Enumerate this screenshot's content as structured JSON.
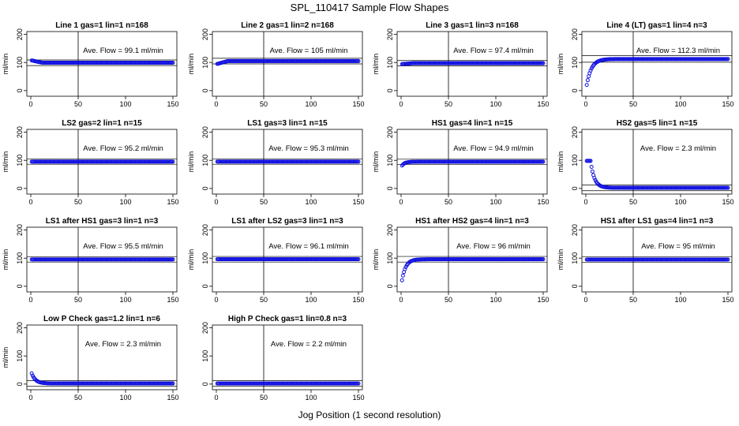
{
  "figure": {
    "title": "SPL_110417  Sample Flow Shapes",
    "xlabel": "Jog Position (1 second resolution)"
  },
  "colors": {
    "points": "#1010e0",
    "axes": "#000000"
  },
  "chart_data": [
    {
      "type": "scatter",
      "title": "Line 1 gas=1 lin=1 n=168",
      "ylabel": "ml/min",
      "annotation": "Ave. Flow =  99.1  ml/min",
      "xlim": [
        0,
        150
      ],
      "ylim": [
        -20,
        210
      ],
      "xticks": [
        0,
        50,
        100,
        150
      ],
      "yticks": [
        0,
        100,
        200
      ],
      "vline": 50,
      "hlines": [
        89,
        109
      ],
      "shape": {
        "kind": "flat",
        "value": 99.1,
        "start": 108
      }
    },
    {
      "type": "scatter",
      "title": "Line 2 gas=1 lin=2 n=168",
      "ylabel": "ml/min",
      "annotation": "Ave. Flow =  105  ml/min",
      "xlim": [
        0,
        150
      ],
      "ylim": [
        -20,
        210
      ],
      "xticks": [
        0,
        50,
        100,
        150
      ],
      "yticks": [
        0,
        100,
        200
      ],
      "vline": 50,
      "hlines": [
        95,
        115
      ],
      "shape": {
        "kind": "flat",
        "value": 105,
        "start": 94
      }
    },
    {
      "type": "scatter",
      "title": "Line 3 gas=1 lin=3 n=168",
      "ylabel": "ml/min",
      "annotation": "Ave. Flow =  97.4  ml/min",
      "xlim": [
        0,
        150
      ],
      "ylim": [
        -20,
        210
      ],
      "xticks": [
        0,
        50,
        100,
        150
      ],
      "yticks": [
        0,
        100,
        200
      ],
      "vline": 50,
      "hlines": [
        88,
        107
      ],
      "shape": {
        "kind": "flat",
        "value": 97.4,
        "start": 94
      }
    },
    {
      "type": "scatter",
      "title": "Line 4 (LT) gas=1 lin=4 n=3",
      "ylabel": "ml/min",
      "annotation": "Ave. Flow =  112.3  ml/min",
      "xlim": [
        0,
        150
      ],
      "ylim": [
        -20,
        210
      ],
      "xticks": [
        0,
        50,
        100,
        150
      ],
      "yticks": [
        0,
        100,
        200
      ],
      "vline": 50,
      "hlines": [
        101,
        124
      ],
      "shape": {
        "kind": "rise",
        "value": 112.3,
        "start": 0,
        "tau": 5
      }
    },
    {
      "type": "scatter",
      "title": "LS2 gas=2 lin=1 n=15",
      "ylabel": "ml/min",
      "annotation": "Ave. Flow =  95.2  ml/min",
      "xlim": [
        0,
        150
      ],
      "ylim": [
        -20,
        210
      ],
      "xticks": [
        0,
        50,
        100,
        150
      ],
      "yticks": [
        0,
        100,
        200
      ],
      "vline": 50,
      "hlines": [
        86,
        105
      ],
      "shape": {
        "kind": "flat",
        "value": 95.2,
        "start": 95.2
      }
    },
    {
      "type": "scatter",
      "title": "LS1 gas=3 lin=1 n=15",
      "ylabel": "ml/min",
      "annotation": "Ave. Flow =  95.3  ml/min",
      "xlim": [
        0,
        150
      ],
      "ylim": [
        -20,
        210
      ],
      "xticks": [
        0,
        50,
        100,
        150
      ],
      "yticks": [
        0,
        100,
        200
      ],
      "vline": 50,
      "hlines": [
        86,
        105
      ],
      "shape": {
        "kind": "flat",
        "value": 95.3,
        "start": 95.3
      }
    },
    {
      "type": "scatter",
      "title": "HS1 gas=4 lin=1 n=15",
      "ylabel": "ml/min",
      "annotation": "Ave. Flow =  94.9  ml/min",
      "xlim": [
        0,
        150
      ],
      "ylim": [
        -20,
        210
      ],
      "xticks": [
        0,
        50,
        100,
        150
      ],
      "yticks": [
        0,
        100,
        200
      ],
      "vline": 50,
      "hlines": [
        85,
        104
      ],
      "shape": {
        "kind": "rise",
        "value": 94.9,
        "start": 76,
        "tau": 3
      }
    },
    {
      "type": "scatter",
      "title": "HS2 gas=5 lin=1 n=15",
      "ylabel": "ml/min",
      "annotation": "Ave. Flow =  2.3  ml/min",
      "xlim": [
        0,
        150
      ],
      "ylim": [
        -20,
        210
      ],
      "xticks": [
        0,
        50,
        100,
        150
      ],
      "yticks": [
        0,
        100,
        200
      ],
      "vline": 50,
      "hlines": [
        -8,
        12
      ],
      "shape": {
        "kind": "decay",
        "value": 2.3,
        "start": 98,
        "delay": 5,
        "tau": 4
      }
    },
    {
      "type": "scatter",
      "title": "LS1 after HS1 gas=3 lin=1 n=3",
      "ylabel": "ml/min",
      "annotation": "Ave. Flow =  95.5  ml/min",
      "xlim": [
        0,
        150
      ],
      "ylim": [
        -20,
        210
      ],
      "xticks": [
        0,
        50,
        100,
        150
      ],
      "yticks": [
        0,
        100,
        200
      ],
      "vline": 50,
      "hlines": [
        86,
        105
      ],
      "shape": {
        "kind": "flat",
        "value": 95.5,
        "start": 95.5
      }
    },
    {
      "type": "scatter",
      "title": "LS1 after LS2 gas=3 lin=1 n=3",
      "ylabel": "ml/min",
      "annotation": "Ave. Flow =  96.1  ml/min",
      "xlim": [
        0,
        150
      ],
      "ylim": [
        -20,
        210
      ],
      "xticks": [
        0,
        50,
        100,
        150
      ],
      "yticks": [
        0,
        100,
        200
      ],
      "vline": 50,
      "hlines": [
        86,
        106
      ],
      "shape": {
        "kind": "flat",
        "value": 96.1,
        "start": 96.1
      }
    },
    {
      "type": "scatter",
      "title": "HS1 after HS2 gas=4 lin=1 n=3",
      "ylabel": "ml/min",
      "annotation": "Ave. Flow =  96  ml/min",
      "xlim": [
        0,
        150
      ],
      "ylim": [
        -20,
        210
      ],
      "xticks": [
        0,
        50,
        100,
        150
      ],
      "yticks": [
        0,
        100,
        200
      ],
      "vline": 50,
      "hlines": [
        86,
        106
      ],
      "shape": {
        "kind": "rise",
        "value": 96,
        "start": 0,
        "tau": 4
      }
    },
    {
      "type": "scatter",
      "title": "HS1 after LS1 gas=4 lin=1 n=3",
      "ylabel": "ml/min",
      "annotation": "Ave. Flow =  95  ml/min",
      "xlim": [
        0,
        150
      ],
      "ylim": [
        -20,
        210
      ],
      "xticks": [
        0,
        50,
        100,
        150
      ],
      "yticks": [
        0,
        100,
        200
      ],
      "vline": 50,
      "hlines": [
        85,
        105
      ],
      "shape": {
        "kind": "flat",
        "value": 95,
        "start": 95
      }
    },
    {
      "type": "scatter",
      "title": "Low P Check gas=1.2 lin=1 n=6",
      "ylabel": "ml/min",
      "annotation": "Ave. Flow =  2.3  ml/min",
      "xlim": [
        0,
        150
      ],
      "ylim": [
        -20,
        210
      ],
      "xticks": [
        0,
        50,
        100,
        150
      ],
      "yticks": [
        0,
        100,
        200
      ],
      "vline": 50,
      "hlines": [
        -8,
        12
      ],
      "shape": {
        "kind": "decay",
        "value": 2.3,
        "start": 48,
        "delay": 0,
        "tau": 4
      }
    },
    {
      "type": "scatter",
      "title": "High P Check gas=1 lin=0.8 n=3",
      "ylabel": "",
      "annotation": "Ave. Flow =  2.2  ml/min",
      "xlim": [
        0,
        150
      ],
      "ylim": [
        -20,
        210
      ],
      "xticks": [
        0,
        50,
        100,
        150
      ],
      "yticks": [
        0,
        100,
        200
      ],
      "vline": 50,
      "hlines": [
        -8,
        12
      ],
      "shape": {
        "kind": "flat",
        "value": 2.2,
        "start": 2.2
      }
    }
  ]
}
